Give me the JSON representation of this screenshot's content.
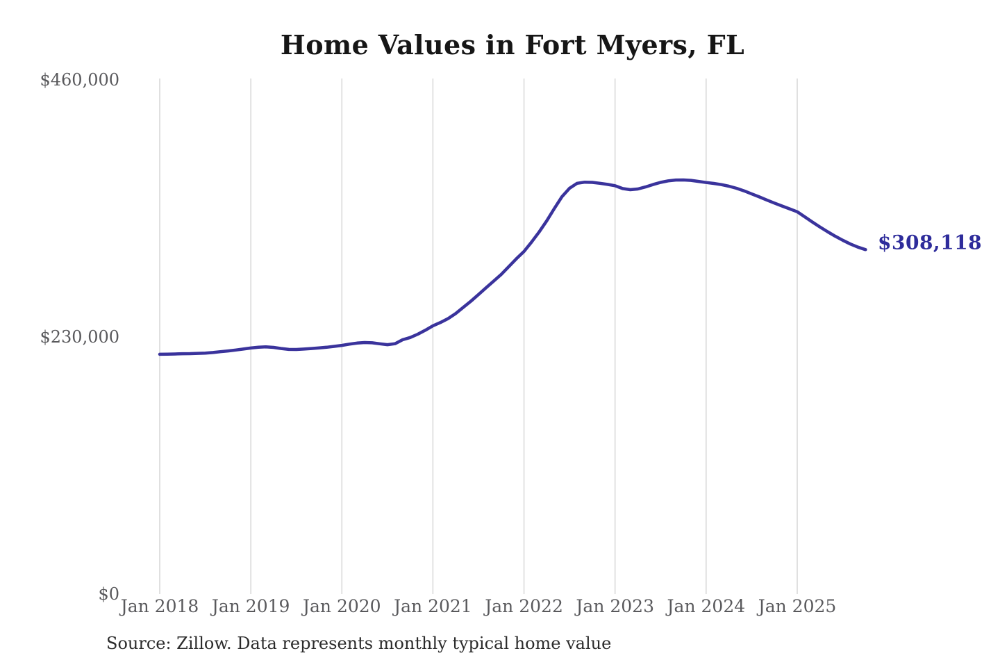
{
  "title": "Home Values in Fort Myers, FL",
  "annotation": {
    "latest_value_label": "$308,118",
    "latest_value": 308118
  },
  "source_note": "Source: Zillow. Data represents monthly typical home value",
  "colors": {
    "background": "#ffffff",
    "line": "#3a339c",
    "grid": "#cccccc",
    "axis_text": "#59595c",
    "title_text": "#161616",
    "annotation_text": "#2e2c9b",
    "source_text": "#2b2b2b"
  },
  "chart_data": {
    "type": "line",
    "title": "Home Values in Fort Myers, FL",
    "xlabel": "",
    "ylabel": "",
    "ylim": [
      0,
      460000
    ],
    "y_ticks": [
      0,
      230000,
      460000
    ],
    "y_tick_labels": [
      "$0",
      "$230,000",
      "$460,000"
    ],
    "x_tick_labels": [
      "Jan 2018",
      "Jan 2019",
      "Jan 2020",
      "Jan 2021",
      "Jan 2022",
      "Jan 2023",
      "Jan 2024",
      "Jan 2025"
    ],
    "grid": "vertical-only",
    "legend": "none",
    "frequency": "monthly",
    "x_start": "Jan 2018",
    "x_end": "Oct 2025",
    "series": [
      {
        "name": "Typical home value",
        "values": [
          214500,
          214600,
          214800,
          215000,
          215100,
          215300,
          215600,
          216100,
          216800,
          217500,
          218300,
          219200,
          220100,
          220800,
          221200,
          220700,
          219700,
          218900,
          218800,
          219200,
          219700,
          220200,
          220800,
          221600,
          222500,
          223600,
          224500,
          225000,
          224800,
          223900,
          223100,
          224000,
          227500,
          229500,
          232500,
          236000,
          240000,
          243000,
          246500,
          251000,
          256500,
          262000,
          268000,
          274000,
          280000,
          286000,
          293000,
          300000,
          306500,
          315000,
          324000,
          334000,
          345000,
          355500,
          363000,
          367500,
          368500,
          368300,
          367500,
          366500,
          365300,
          362800,
          361800,
          362400,
          364200,
          366400,
          368300,
          369700,
          370400,
          370500,
          370100,
          369200,
          368200,
          367400,
          366300,
          364900,
          363000,
          360700,
          358000,
          355300,
          352500,
          349800,
          347200,
          344600,
          342000,
          337500,
          332800,
          328400,
          324200,
          320200,
          316500,
          313200,
          310400,
          308118
        ]
      }
    ]
  }
}
